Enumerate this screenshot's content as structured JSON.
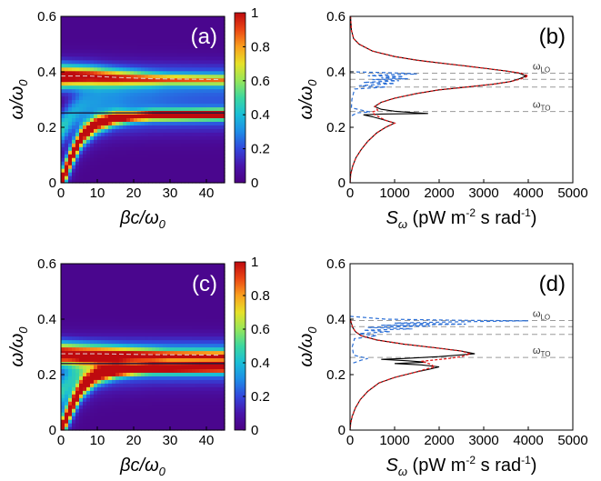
{
  "figure": {
    "colorbar": {
      "ticks": [
        "0",
        "0.2",
        "0.4",
        "0.6",
        "0.8",
        "1"
      ]
    },
    "panel_labels": [
      "(a)",
      "(b)",
      "(c)",
      "(d)"
    ],
    "y_label": "ω/ω0",
    "map_x_label": "βc/ω0",
    "spectrum_x_label": "Sω (pW m-2 s rad-1)",
    "annotations": {
      "lo": "ωLO",
      "to": "ωTO"
    }
  },
  "chart_data": [
    {
      "panel": "(a)",
      "type": "heatmap",
      "xlabel": "βc/ω0",
      "ylabel": "ω/ω0",
      "xlim": [
        0,
        45
      ],
      "ylim": [
        0,
        0.6
      ],
      "xticks": [
        0,
        10,
        20,
        30,
        40
      ],
      "yticks": [
        0,
        0.2,
        0.4,
        0.6
      ],
      "colorbar": {
        "range": [
          0,
          1
        ],
        "ticks": [
          0,
          0.2,
          0.4,
          0.6,
          0.8,
          1
        ]
      },
      "features": {
        "light_line_band": [
          [
            0,
            0
          ],
          [
            3,
            0.1
          ],
          [
            6,
            0.175
          ],
          [
            10,
            0.215
          ],
          [
            15,
            0.235
          ],
          [
            25,
            0.245
          ],
          [
            44,
            0.248
          ]
        ],
        "upper_band": [
          [
            0,
            0.385
          ],
          [
            8,
            0.385
          ],
          [
            15,
            0.38
          ],
          [
            25,
            0.375
          ],
          [
            44,
            0.372
          ]
        ],
        "to_line": 0.252
      }
    },
    {
      "panel": "(b)",
      "type": "line",
      "xlabel": "Sω (pW m-2 s rad-1)",
      "ylabel": "ω/ω0",
      "xlim": [
        0,
        5000
      ],
      "ylim": [
        0,
        0.6
      ],
      "xticks": [
        0,
        1000,
        2000,
        3000,
        4000,
        5000
      ],
      "yticks": [
        0,
        0.2,
        0.4,
        0.6
      ],
      "reference_lines": [
        0.395,
        0.373,
        0.345,
        0.257
      ],
      "series": [
        {
          "style": "black-solid",
          "points": [
            [
              10,
              0.6
            ],
            [
              30,
              0.55
            ],
            [
              80,
              0.52
            ],
            [
              200,
              0.5
            ],
            [
              500,
              0.475
            ],
            [
              1000,
              0.455
            ],
            [
              1500,
              0.442
            ],
            [
              2000,
              0.432
            ],
            [
              2500,
              0.423
            ],
            [
              3000,
              0.413
            ],
            [
              3500,
              0.403
            ],
            [
              3800,
              0.395
            ],
            [
              3950,
              0.385
            ],
            [
              3800,
              0.375
            ],
            [
              3600,
              0.365
            ],
            [
              3200,
              0.355
            ],
            [
              2600,
              0.345
            ],
            [
              2000,
              0.335
            ],
            [
              1500,
              0.322
            ],
            [
              1000,
              0.305
            ],
            [
              700,
              0.29
            ],
            [
              550,
              0.275
            ],
            [
              700,
              0.265
            ],
            [
              1000,
              0.258
            ],
            [
              1400,
              0.253
            ],
            [
              1750,
              0.25
            ],
            [
              700,
              0.248
            ],
            [
              300,
              0.245
            ],
            [
              500,
              0.238
            ],
            [
              800,
              0.225
            ],
            [
              1000,
              0.215
            ],
            [
              800,
              0.2
            ],
            [
              600,
              0.18
            ],
            [
              400,
              0.15
            ],
            [
              250,
              0.12
            ],
            [
              130,
              0.09
            ],
            [
              60,
              0.06
            ],
            [
              15,
              0.03
            ],
            [
              0,
              0
            ]
          ]
        },
        {
          "style": "red-dashed",
          "points": [
            [
              10,
              0.6
            ],
            [
              30,
              0.55
            ],
            [
              80,
              0.52
            ],
            [
              200,
              0.5
            ],
            [
              500,
              0.475
            ],
            [
              1000,
              0.455
            ],
            [
              1500,
              0.442
            ],
            [
              2000,
              0.432
            ],
            [
              2500,
              0.423
            ],
            [
              3000,
              0.413
            ],
            [
              3500,
              0.403
            ],
            [
              3850,
              0.395
            ],
            [
              4000,
              0.385
            ],
            [
              3850,
              0.375
            ],
            [
              3600,
              0.365
            ],
            [
              3200,
              0.355
            ],
            [
              2600,
              0.345
            ],
            [
              2000,
              0.335
            ],
            [
              1500,
              0.322
            ],
            [
              1000,
              0.305
            ],
            [
              700,
              0.29
            ],
            [
              560,
              0.275
            ],
            [
              620,
              0.262
            ],
            [
              500,
              0.255
            ],
            [
              560,
              0.245
            ],
            [
              800,
              0.225
            ],
            [
              1000,
              0.215
            ],
            [
              800,
              0.2
            ],
            [
              600,
              0.18
            ],
            [
              400,
              0.15
            ],
            [
              250,
              0.12
            ],
            [
              130,
              0.09
            ],
            [
              60,
              0.06
            ],
            [
              15,
              0.03
            ],
            [
              0,
              0
            ]
          ]
        },
        {
          "style": "blue-dashed",
          "points": [
            [
              0,
              0.4
            ],
            [
              600,
              0.398
            ],
            [
              1200,
              0.395
            ],
            [
              1500,
              0.392
            ],
            [
              900,
              0.39
            ],
            [
              400,
              0.386
            ],
            [
              1200,
              0.383
            ],
            [
              700,
              0.378
            ],
            [
              1300,
              0.375
            ],
            [
              500,
              0.372
            ],
            [
              1100,
              0.368
            ],
            [
              300,
              0.362
            ],
            [
              1000,
              0.358
            ],
            [
              200,
              0.35
            ],
            [
              800,
              0.345
            ],
            [
              100,
              0.338
            ],
            [
              40,
              0.3
            ],
            [
              30,
              0.27
            ],
            [
              450,
              0.255
            ],
            [
              150,
              0.252
            ],
            [
              20,
              0.24
            ]
          ]
        }
      ]
    },
    {
      "panel": "(c)",
      "type": "heatmap",
      "xlabel": "βc/ω0",
      "ylabel": "ω/ω0",
      "xlim": [
        0,
        45
      ],
      "ylim": [
        0,
        0.6
      ],
      "xticks": [
        0,
        10,
        20,
        30,
        40
      ],
      "yticks": [
        0,
        0.2,
        0.4,
        0.6
      ],
      "colorbar": {
        "range": [
          0,
          1
        ],
        "ticks": [
          0,
          0.2,
          0.4,
          0.6,
          0.8,
          1
        ]
      },
      "features": {
        "light_line_band": [
          [
            0,
            0
          ],
          [
            3,
            0.09
          ],
          [
            6,
            0.16
          ],
          [
            10,
            0.2
          ],
          [
            15,
            0.215
          ],
          [
            25,
            0.225
          ],
          [
            44,
            0.228
          ]
        ],
        "upper_band": [
          [
            0,
            0.275
          ],
          [
            10,
            0.275
          ],
          [
            25,
            0.272
          ],
          [
            44,
            0.27
          ]
        ],
        "to_line": 0.24
      }
    },
    {
      "panel": "(d)",
      "type": "line",
      "xlabel": "Sω (pW m-2 s rad-1)",
      "ylabel": "ω/ω0",
      "xlim": [
        0,
        5000
      ],
      "ylim": [
        0,
        0.6
      ],
      "xticks": [
        0,
        1000,
        2000,
        3000,
        4000,
        5000
      ],
      "yticks": [
        0,
        0.2,
        0.4,
        0.6
      ],
      "reference_lines": [
        0.395,
        0.373,
        0.345,
        0.262
      ],
      "series": [
        {
          "style": "black-solid",
          "points": [
            [
              10,
              0.4
            ],
            [
              15,
              0.395
            ],
            [
              30,
              0.385
            ],
            [
              60,
              0.37
            ],
            [
              120,
              0.355
            ],
            [
              250,
              0.34
            ],
            [
              600,
              0.325
            ],
            [
              1200,
              0.31
            ],
            [
              2000,
              0.295
            ],
            [
              2500,
              0.285
            ],
            [
              2800,
              0.275
            ],
            [
              2000,
              0.265
            ],
            [
              1200,
              0.258
            ],
            [
              700,
              0.255
            ],
            [
              1300,
              0.25
            ],
            [
              1700,
              0.245
            ],
            [
              1000,
              0.24
            ],
            [
              1600,
              0.235
            ],
            [
              2000,
              0.228
            ],
            [
              1800,
              0.22
            ],
            [
              1500,
              0.21
            ],
            [
              1000,
              0.19
            ],
            [
              650,
              0.17
            ],
            [
              400,
              0.14
            ],
            [
              230,
              0.11
            ],
            [
              120,
              0.08
            ],
            [
              50,
              0.05
            ],
            [
              15,
              0.025
            ],
            [
              0,
              0
            ]
          ]
        },
        {
          "style": "red-dashed",
          "points": [
            [
              12,
              0.395
            ],
            [
              30,
              0.385
            ],
            [
              60,
              0.37
            ],
            [
              120,
              0.355
            ],
            [
              250,
              0.34
            ],
            [
              600,
              0.325
            ],
            [
              1200,
              0.31
            ],
            [
              2000,
              0.295
            ],
            [
              2500,
              0.285
            ],
            [
              2700,
              0.275
            ],
            [
              2500,
              0.265
            ],
            [
              2200,
              0.258
            ],
            [
              1600,
              0.248
            ],
            [
              1800,
              0.238
            ],
            [
              1900,
              0.228
            ],
            [
              1700,
              0.22
            ],
            [
              1500,
              0.21
            ],
            [
              1000,
              0.19
            ],
            [
              650,
              0.17
            ],
            [
              400,
              0.14
            ],
            [
              230,
              0.11
            ],
            [
              120,
              0.08
            ],
            [
              50,
              0.05
            ],
            [
              15,
              0.025
            ],
            [
              0,
              0
            ]
          ]
        },
        {
          "style": "blue-dashed",
          "points": [
            [
              0,
              0.41
            ],
            [
              800,
              0.4
            ],
            [
              2400,
              0.396
            ],
            [
              4000,
              0.394
            ],
            [
              2200,
              0.39
            ],
            [
              1000,
              0.386
            ],
            [
              2600,
              0.382
            ],
            [
              700,
              0.378
            ],
            [
              1800,
              0.375
            ],
            [
              400,
              0.37
            ],
            [
              1400,
              0.365
            ],
            [
              300,
              0.36
            ],
            [
              900,
              0.355
            ],
            [
              200,
              0.348
            ],
            [
              600,
              0.34
            ],
            [
              100,
              0.33
            ],
            [
              50,
              0.3
            ],
            [
              80,
              0.27
            ],
            [
              400,
              0.258
            ],
            [
              250,
              0.252
            ],
            [
              40,
              0.24
            ]
          ]
        }
      ]
    }
  ]
}
